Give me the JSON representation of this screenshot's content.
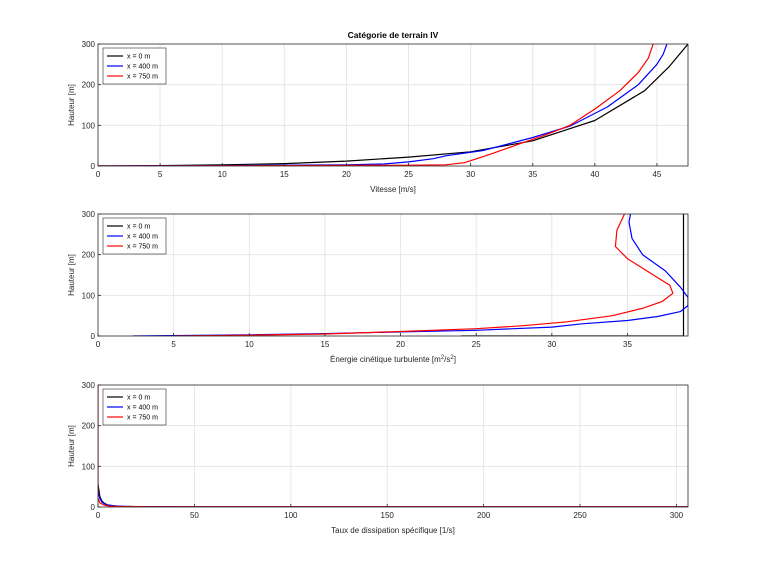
{
  "colors": {
    "series": [
      "#000000",
      "#0000ff",
      "#ff0000"
    ],
    "grid": "#e6e6e6",
    "axis": "#262626"
  },
  "chart_data": [
    {
      "type": "line",
      "title": "Catégorie de terrain IV",
      "xlabel": "Vitesse   [m/s]",
      "ylabel": "Hauteur [m]",
      "xlim": [
        0,
        47.5
      ],
      "ylim": [
        0,
        300
      ],
      "xticks": [
        0,
        5,
        10,
        15,
        20,
        25,
        30,
        35,
        40,
        45
      ],
      "yticks": [
        0,
        100,
        200,
        300
      ],
      "grid": true,
      "legend": "top-left",
      "series": [
        {
          "name": "x = 0 m",
          "color": "#000000",
          "points": [
            [
              0,
              0
            ],
            [
              5,
              1
            ],
            [
              10,
              3
            ],
            [
              15,
              6
            ],
            [
              20,
              12
            ],
            [
              25,
              22
            ],
            [
              30,
              35
            ],
            [
              35,
              62
            ],
            [
              40,
              112
            ],
            [
              44,
              185
            ],
            [
              46,
              245
            ],
            [
              47.5,
              300
            ]
          ]
        },
        {
          "name": "x = 400 m",
          "color": "#0000ff",
          "points": [
            [
              0,
              0
            ],
            [
              10,
              1
            ],
            [
              20,
              3
            ],
            [
              23,
              5
            ],
            [
              25,
              10
            ],
            [
              27,
              18
            ],
            [
              28,
              25
            ],
            [
              31,
              38
            ],
            [
              35,
              70
            ],
            [
              38,
              98
            ],
            [
              41,
              145
            ],
            [
              43.5,
              200
            ],
            [
              45,
              250
            ],
            [
              45.5,
              275
            ],
            [
              45.8,
              300
            ]
          ]
        },
        {
          "name": "x = 750 m",
          "color": "#ff0000",
          "points": [
            [
              0,
              0
            ],
            [
              15,
              1
            ],
            [
              25,
              2
            ],
            [
              28,
              3
            ],
            [
              29.5,
              8
            ],
            [
              30.5,
              18
            ],
            [
              31.5,
              28
            ],
            [
              34,
              55
            ],
            [
              36,
              76
            ],
            [
              38,
              100
            ],
            [
              40,
              140
            ],
            [
              42,
              185
            ],
            [
              43.5,
              230
            ],
            [
              44.3,
              265
            ],
            [
              44.7,
              300
            ]
          ]
        }
      ]
    },
    {
      "type": "line",
      "xlabel": "Énergie cinétique turbulente  [m",
      "xlabel_sup1": "2",
      "xlabel_mid": "/s",
      "xlabel_sup2": "2",
      "xlabel_end": "]",
      "ylabel": "Hauteur [m]",
      "xlim": [
        0,
        39
      ],
      "ylim": [
        0,
        300
      ],
      "xticks": [
        0,
        5,
        10,
        15,
        20,
        25,
        30,
        35
      ],
      "yticks": [
        0,
        100,
        200,
        300
      ],
      "grid": true,
      "legend": "top-left",
      "series": [
        {
          "name": "x = 0 m",
          "color": "#000000",
          "points": [
            [
              24,
              0
            ],
            [
              38.7,
              0
            ],
            [
              38.7,
              300
            ]
          ]
        },
        {
          "name": "x = 400 m",
          "color": "#0000ff",
          "points": [
            [
              2.3,
              0
            ],
            [
              10,
              3
            ],
            [
              15,
              6
            ],
            [
              20,
              10
            ],
            [
              25,
              14
            ],
            [
              30,
              22
            ],
            [
              32,
              30
            ],
            [
              35,
              38
            ],
            [
              37,
              48
            ],
            [
              38.5,
              60
            ],
            [
              39,
              75
            ],
            [
              39,
              95
            ],
            [
              38.5,
              120
            ],
            [
              37.5,
              160
            ],
            [
              36,
              200
            ],
            [
              35.3,
              240
            ],
            [
              35.1,
              280
            ],
            [
              35.2,
              300
            ]
          ]
        },
        {
          "name": "x = 750 m",
          "color": "#ff0000",
          "points": [
            [
              5,
              0
            ],
            [
              10,
              2
            ],
            [
              15,
              5
            ],
            [
              20,
              11
            ],
            [
              25,
              18
            ],
            [
              28,
              25
            ],
            [
              31,
              35
            ],
            [
              34,
              50
            ],
            [
              36,
              68
            ],
            [
              37.3,
              85
            ],
            [
              38,
              105
            ],
            [
              37.8,
              125
            ],
            [
              36.5,
              155
            ],
            [
              35,
              190
            ],
            [
              34.2,
              220
            ],
            [
              34.3,
              260
            ],
            [
              34.8,
              300
            ]
          ]
        }
      ]
    },
    {
      "type": "line",
      "xlabel": "Taux de dissipation spécifique  [1/s]",
      "ylabel": "Hauteur [m]",
      "xlim": [
        0,
        306
      ],
      "ylim": [
        0,
        300
      ],
      "xticks": [
        0,
        50,
        100,
        150,
        200,
        250,
        300
      ],
      "yticks": [
        0,
        100,
        200,
        300
      ],
      "grid": true,
      "legend": "top-left",
      "series": [
        {
          "name": "x = 0 m",
          "color": "#000000",
          "points": [
            [
              0,
              55
            ],
            [
              0.5,
              40
            ],
            [
              1,
              25
            ],
            [
              2,
              15
            ],
            [
              3,
              10
            ],
            [
              5,
              5
            ],
            [
              10,
              2
            ],
            [
              20,
              1
            ],
            [
              50,
              0.5
            ],
            [
              306,
              0.5
            ]
          ]
        },
        {
          "name": "x = 400 m",
          "color": "#0000ff",
          "points": [
            [
              0,
              40
            ],
            [
              1,
              20
            ],
            [
              2,
              12
            ],
            [
              4,
              6
            ],
            [
              8,
              3
            ],
            [
              15,
              1
            ],
            [
              50,
              0.5
            ],
            [
              306,
              0.5
            ]
          ]
        },
        {
          "name": "x = 750 m",
          "color": "#ff0000",
          "points": [
            [
              0,
              300
            ],
            [
              0,
              20
            ],
            [
              1,
              10
            ],
            [
              3,
              5
            ],
            [
              6,
              2
            ],
            [
              12,
              1
            ],
            [
              30,
              0.5
            ],
            [
              306,
              0.5
            ]
          ]
        }
      ]
    }
  ]
}
